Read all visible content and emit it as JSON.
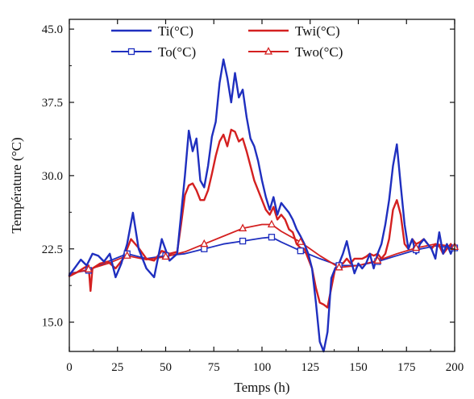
{
  "chart_data": {
    "type": "line",
    "xlabel": "Temps (h)",
    "ylabel": "Température (°C)",
    "xlim": [
      0,
      200
    ],
    "ylim": [
      12,
      46
    ],
    "xticks": [
      0,
      25,
      50,
      75,
      100,
      125,
      150,
      175,
      200
    ],
    "yticks": [
      15.0,
      22.5,
      30.0,
      37.5,
      45.0
    ],
    "xtick_labels": [
      "0",
      "25",
      "50",
      "75",
      "100",
      "125",
      "150",
      "175",
      "200"
    ],
    "ytick_labels": [
      "15.0",
      "22.5",
      "30.0",
      "37.5",
      "45.0"
    ],
    "grid": false,
    "legend_position": "top",
    "series": [
      {
        "name": "Ti(°C)",
        "color": "#1f2fbf",
        "marker": "none",
        "x": [
          0,
          3,
          6,
          9,
          12,
          15,
          18,
          21,
          24,
          27,
          30,
          33,
          36,
          40,
          44,
          48,
          52,
          56,
          60,
          62,
          64,
          66,
          68,
          70,
          72,
          74,
          76,
          78,
          80,
          82,
          84,
          86,
          88,
          90,
          92,
          94,
          96,
          98,
          100,
          102,
          104,
          106,
          108,
          110,
          112,
          114,
          116,
          118,
          120,
          122,
          124,
          126,
          128,
          130,
          132,
          134,
          136,
          138,
          140,
          142,
          144,
          146,
          148,
          150,
          152,
          154,
          156,
          158,
          160,
          162,
          164,
          166,
          168,
          170,
          172,
          174,
          176,
          178,
          180,
          182,
          184,
          186,
          188,
          190,
          192,
          194,
          196,
          198,
          200
        ],
        "y": [
          19.8,
          20.6,
          21.4,
          20.8,
          22.0,
          21.8,
          21.2,
          22.0,
          19.6,
          21.0,
          23.0,
          26.2,
          22.5,
          20.5,
          19.6,
          23.5,
          21.3,
          22.0,
          30.0,
          34.6,
          32.5,
          33.8,
          29.5,
          28.8,
          31.0,
          34.0,
          35.5,
          39.5,
          41.9,
          40.0,
          37.5,
          40.5,
          38.0,
          38.8,
          36.0,
          33.8,
          33.0,
          31.5,
          29.5,
          27.8,
          26.5,
          27.8,
          26.0,
          27.2,
          26.7,
          26.2,
          25.5,
          24.5,
          23.8,
          23.0,
          22.0,
          20.5,
          17.0,
          13.0,
          12.0,
          14.0,
          19.5,
          20.5,
          21.0,
          22.0,
          23.3,
          21.5,
          20.0,
          21.0,
          20.5,
          21.0,
          22.0,
          20.5,
          22.0,
          23.0,
          25.0,
          27.5,
          31.0,
          33.2,
          29.0,
          25.0,
          22.5,
          23.5,
          22.0,
          23.0,
          23.5,
          23.0,
          22.5,
          21.5,
          24.2,
          22.0,
          23.0,
          22.0,
          23.0
        ]
      },
      {
        "name": "Twi(°C)",
        "color": "#d42020",
        "marker": "none",
        "x": [
          0,
          4,
          8,
          10,
          11,
          12,
          16,
          20,
          24,
          28,
          32,
          36,
          40,
          44,
          48,
          52,
          56,
          58,
          60,
          62,
          64,
          66,
          68,
          70,
          72,
          74,
          76,
          78,
          80,
          82,
          84,
          86,
          88,
          90,
          92,
          94,
          96,
          98,
          100,
          102,
          104,
          106,
          108,
          110,
          112,
          114,
          116,
          118,
          120,
          122,
          124,
          126,
          128,
          130,
          132,
          134,
          136,
          138,
          140,
          142,
          144,
          146,
          148,
          150,
          152,
          154,
          156,
          158,
          160,
          162,
          164,
          166,
          168,
          170,
          172,
          174,
          176,
          178,
          180,
          182,
          184,
          186,
          188,
          190,
          192,
          194,
          196,
          198,
          200
        ],
        "y": [
          19.7,
          20.1,
          20.6,
          20.8,
          18.2,
          20.5,
          21.0,
          21.2,
          20.5,
          21.5,
          23.5,
          22.6,
          21.5,
          21.3,
          22.3,
          22.0,
          22.2,
          25.0,
          28.0,
          29.0,
          29.2,
          28.5,
          27.5,
          27.5,
          28.5,
          30.2,
          32.0,
          33.5,
          34.2,
          33.0,
          34.7,
          34.5,
          33.5,
          33.8,
          32.5,
          31.0,
          29.5,
          28.5,
          27.5,
          26.5,
          26.0,
          26.8,
          25.5,
          26.0,
          25.5,
          24.5,
          24.2,
          23.0,
          22.6,
          22.5,
          21.5,
          20.5,
          18.5,
          17.0,
          16.8,
          16.5,
          18.5,
          20.5,
          21.0,
          21.0,
          21.5,
          21.0,
          21.5,
          21.5,
          21.5,
          21.7,
          22.0,
          21.8,
          22.0,
          21.5,
          22.0,
          23.5,
          26.5,
          27.5,
          26.0,
          23.0,
          22.5,
          23.5,
          23.0,
          23.2,
          23.5,
          23.0,
          22.5,
          23.0,
          22.8,
          22.0,
          22.5,
          23.0,
          22.5
        ]
      },
      {
        "name": "To(°C)",
        "color": "#1f2fbf",
        "marker": "square",
        "x": [
          0,
          10,
          20,
          30,
          40,
          50,
          60,
          70,
          80,
          90,
          100,
          105,
          110,
          120,
          130,
          140,
          150,
          160,
          170,
          180,
          190,
          200
        ],
        "y": [
          20.0,
          20.3,
          21.2,
          22.0,
          21.5,
          21.8,
          22.0,
          22.5,
          23.0,
          23.3,
          23.6,
          23.7,
          23.2,
          22.3,
          21.5,
          20.8,
          20.8,
          21.2,
          21.8,
          22.4,
          22.8,
          22.6
        ]
      },
      {
        "name": "Two(°C)",
        "color": "#d42020",
        "marker": "triangle",
        "x": [
          0,
          10,
          20,
          30,
          40,
          50,
          60,
          70,
          80,
          90,
          100,
          105,
          110,
          120,
          130,
          140,
          150,
          160,
          170,
          180,
          190,
          200
        ],
        "y": [
          19.9,
          20.4,
          21.0,
          21.8,
          21.4,
          21.7,
          22.2,
          23.0,
          23.8,
          24.6,
          25.0,
          25.0,
          24.3,
          23.2,
          21.8,
          20.6,
          20.8,
          21.3,
          22.0,
          22.6,
          23.0,
          22.7
        ]
      }
    ],
    "marker_x": [
      10,
      30,
      50,
      70,
      90,
      105,
      120,
      140,
      160,
      180,
      200
    ]
  }
}
